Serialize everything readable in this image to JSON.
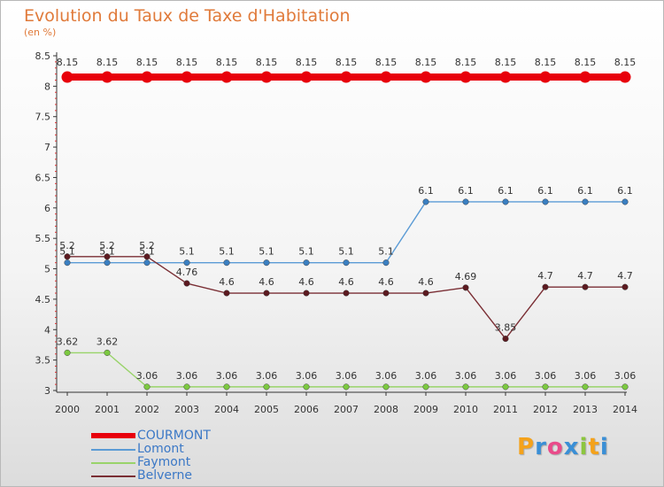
{
  "title": "Evolution du Taux de Taxe d'Habitation",
  "subtitle": "(en %)",
  "chart_data": {
    "type": "line",
    "x": [
      "2000",
      "2001",
      "2002",
      "2003",
      "2004",
      "2005",
      "2006",
      "2007",
      "2008",
      "2009",
      "2010",
      "2011",
      "2012",
      "2013",
      "2014"
    ],
    "ylim": [
      3,
      8.5
    ],
    "yticks": [
      3,
      3.5,
      4,
      4.5,
      5,
      5.5,
      6,
      6.5,
      7,
      7.5,
      8,
      8.5
    ],
    "ytick_labels": [
      "3",
      "3.5",
      "4",
      "4.5",
      "5",
      "5.5",
      "6",
      "6.5",
      "7",
      "7.5",
      "8",
      "8.5"
    ],
    "grid": false,
    "legend_position": "bottom-left",
    "series": [
      {
        "name": "COURMONT",
        "color": "#e8000b",
        "highlight": true,
        "values": [
          8.15,
          8.15,
          8.15,
          8.15,
          8.15,
          8.15,
          8.15,
          8.15,
          8.15,
          8.15,
          8.15,
          8.15,
          8.15,
          8.15,
          8.15
        ],
        "labels": [
          "8.15",
          "8.15",
          "8.15",
          "8.15",
          "8.15",
          "8.15",
          "8.15",
          "8.15",
          "8.15",
          "8.15",
          "8.15",
          "8.15",
          "8.15",
          "8.15",
          "8.15"
        ]
      },
      {
        "name": "Lomont",
        "color": "#5b9bd5",
        "dot_color": "#3a7fc1",
        "values": [
          5.1,
          5.1,
          5.1,
          5.1,
          5.1,
          5.1,
          5.1,
          5.1,
          5.1,
          6.1,
          6.1,
          6.1,
          6.1,
          6.1,
          6.1
        ],
        "labels": [
          "5.1",
          "5.1",
          "5.1",
          "5.1",
          "5.1",
          "5.1",
          "5.1",
          "5.1",
          "5.1",
          "6.1",
          "6.1",
          "6.1",
          "6.1",
          "6.1",
          "6.1"
        ]
      },
      {
        "name": "Faymont",
        "color": "#99d36a",
        "dot_color": "#7cc940",
        "values": [
          3.62,
          3.62,
          3.06,
          3.06,
          3.06,
          3.06,
          3.06,
          3.06,
          3.06,
          3.06,
          3.06,
          3.06,
          3.06,
          3.06,
          3.06
        ],
        "labels": [
          "3.62",
          "3.62",
          "3.06",
          "3.06",
          "3.06",
          "3.06",
          "3.06",
          "3.06",
          "3.06",
          "3.06",
          "3.06",
          "3.06",
          "3.06",
          "3.06",
          "3.06"
        ]
      },
      {
        "name": "Belverne",
        "color": "#7a2e34",
        "dot_color": "#5c1a20",
        "values": [
          5.2,
          5.2,
          5.2,
          4.76,
          4.6,
          4.6,
          4.6,
          4.6,
          4.6,
          4.6,
          4.69,
          3.85,
          4.7,
          4.7,
          4.7
        ],
        "labels": [
          "5.2",
          "5.2",
          "5.2",
          "4.76",
          "4.6",
          "4.6",
          "4.6",
          "4.6",
          "4.6",
          "4.6",
          "4.69",
          "3.85",
          "4.7",
          "4.7",
          "4.7"
        ]
      }
    ]
  },
  "logo": {
    "letters": [
      "P",
      "r",
      "o",
      "x",
      "i",
      "t",
      "i"
    ],
    "colors": [
      "#f4a21b",
      "#3a8fd6",
      "#e94b8a",
      "#3a8fd6",
      "#8cc63f",
      "#f4a21b",
      "#3a8fd6"
    ]
  },
  "colors": {
    "title": "#e07a3a",
    "axis": "#333333",
    "tick_marks": "#d93030",
    "legend_text": "#3b78c6"
  }
}
